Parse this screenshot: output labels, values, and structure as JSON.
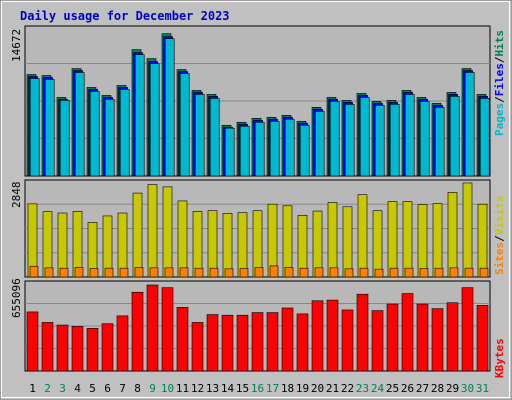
{
  "title": "Daily usage for December 2023",
  "colors": {
    "background": "#c0c0c0",
    "plot_bg": "#b8b8b8",
    "title": "#0000cc",
    "hits": "#00805a",
    "files": "#0000ff",
    "pages": "#00b8d0",
    "visits": "#c8c800",
    "sites": "#ff8000",
    "kbytes": "#ff0000",
    "weekend_day": "#008060",
    "weekday": "#000000"
  },
  "panels": {
    "top": {
      "max_label": "14672",
      "legend": [
        "Pages",
        "Files",
        "Hits"
      ]
    },
    "middle": {
      "max_label": "2848",
      "legend": [
        "Sites",
        "Visits"
      ]
    },
    "bottom": {
      "max_label": "655096",
      "legend": [
        "KBytes"
      ]
    }
  },
  "chart_data": {
    "type": "bar",
    "title": "Daily usage for December 2023",
    "categories": [
      "1",
      "2",
      "3",
      "4",
      "5",
      "6",
      "7",
      "8",
      "9",
      "10",
      "11",
      "12",
      "13",
      "14",
      "15",
      "16",
      "17",
      "18",
      "19",
      "20",
      "21",
      "22",
      "23",
      "24",
      "25",
      "26",
      "27",
      "28",
      "29",
      "30",
      "31"
    ],
    "weekend_days": [
      "2",
      "3",
      "9",
      "10",
      "16",
      "17",
      "23",
      "24",
      "30",
      "31"
    ],
    "panels": [
      {
        "name": "hits-files-pages",
        "ymax": 14672,
        "series": [
          {
            "name": "Hits",
            "values": [
              10200,
              10100,
              7900,
              10800,
              8900,
              8100,
              9100,
              12700,
              11800,
              14300,
              10700,
              8600,
              8200,
              5100,
              5400,
              5800,
              5900,
              6100,
              5500,
              6900,
              7900,
              7600,
              8300,
              7500,
              7600,
              8600,
              7900,
              7300,
              8400,
              10800,
              8200
            ]
          },
          {
            "name": "Files",
            "values": [
              10000,
              9900,
              7700,
              10600,
              8700,
              7900,
              8900,
              12400,
              11500,
              14000,
              10500,
              8400,
              8000,
              4900,
              5200,
              5600,
              5700,
              5900,
              5300,
              6700,
              7700,
              7400,
              8100,
              7300,
              7400,
              8400,
              7700,
              7100,
              8200,
              10600,
              8000
            ]
          },
          {
            "name": "Pages",
            "values": [
              9800,
              9700,
              7600,
              10400,
              8500,
              7700,
              8700,
              12200,
              11300,
              13800,
              10300,
              8200,
              7800,
              4800,
              5000,
              5400,
              5500,
              5700,
              5100,
              6500,
              7500,
              7200,
              7900,
              7100,
              7200,
              8200,
              7500,
              6900,
              8000,
              10400,
              7800
            ]
          }
        ]
      },
      {
        "name": "visits-sites",
        "ymax": 2848,
        "series": [
          {
            "name": "Visits",
            "values": [
              2240,
              2000,
              1960,
              2010,
              1670,
              1870,
              1960,
              2570,
              2830,
              2760,
              2330,
              2010,
              2030,
              1950,
              1970,
              2030,
              2230,
              2180,
              1890,
              2020,
              2280,
              2150,
              2520,
              2030,
              2310,
              2310,
              2220,
              2250,
              2590,
              2880,
              2230
            ]
          },
          {
            "name": "Sites",
            "values": [
              330,
              280,
              270,
              290,
              260,
              270,
              270,
              290,
              280,
              280,
              280,
              270,
              270,
              250,
              260,
              290,
              340,
              290,
              270,
              280,
              280,
              250,
              270,
              240,
              270,
              270,
              260,
              270,
              280,
              270,
              270
            ]
          }
        ]
      },
      {
        "name": "kbytes",
        "ymax": 655096,
        "series": [
          {
            "name": "KBytes",
            "values": [
              450000,
              370000,
              350000,
              340000,
              325000,
              360000,
              420000,
              600000,
              655000,
              635000,
              485000,
              370000,
              430000,
              425000,
              425000,
              445000,
              445000,
              480000,
              435000,
              535000,
              540000,
              465000,
              585000,
              460000,
              510000,
              590000,
              510000,
              475000,
              520000,
              635000,
              500000
            ]
          }
        ]
      }
    ]
  }
}
